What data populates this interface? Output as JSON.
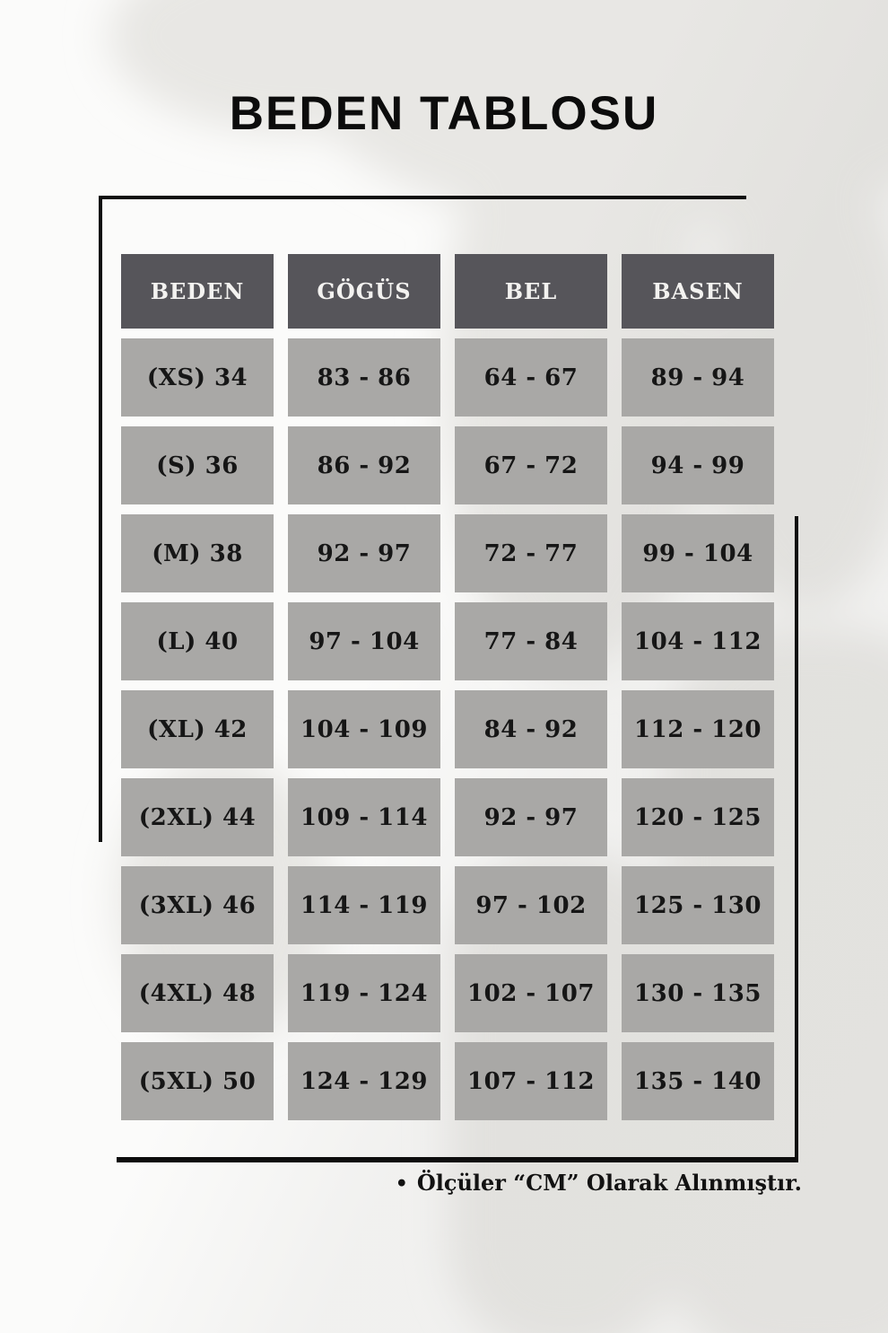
{
  "title": "BEDEN TABLOSU",
  "footnote": {
    "bullet": "•",
    "text": "Ölçüler “CM” Olarak Alınmıştır."
  },
  "chart_data": {
    "type": "table",
    "title": "BEDEN TABLOSU",
    "columns": [
      "BEDEN",
      "GÖGÜS",
      "BEL",
      "BASEN"
    ],
    "rows": [
      [
        "(XS) 34",
        "83 - 86",
        "64 - 67",
        "89 - 94"
      ],
      [
        "(S) 36",
        "86 - 92",
        "67 - 72",
        "94 - 99"
      ],
      [
        "(M) 38",
        "92 - 97",
        "72 - 77",
        "99 - 104"
      ],
      [
        "(L) 40",
        "97 - 104",
        "77 - 84",
        "104 - 112"
      ],
      [
        "(XL) 42",
        "104 - 109",
        "84 - 92",
        "112 - 120"
      ],
      [
        "(2XL) 44",
        "109 - 114",
        "92 - 97",
        "120 - 125"
      ],
      [
        "(3XL) 46",
        "114 - 119",
        "97 - 102",
        "125 - 130"
      ],
      [
        "(4XL) 48",
        "119 - 124",
        "102 - 107",
        "130 - 135"
      ],
      [
        "(5XL) 50",
        "124 - 129",
        "107 - 112",
        "135 - 140"
      ]
    ],
    "note": "Ölçüler “CM” Olarak Alınmıştır.",
    "layout": {
      "grid": "off",
      "header_position": "top-row"
    }
  },
  "colors": {
    "header_bg": "#56555a",
    "header_text": "#f3f2f0",
    "cell_bg": "#a9a8a6",
    "cell_text": "#161616",
    "frame_line": "#0d0d0d",
    "page_bg": "#fbfbfa",
    "silhouette": "#e8e7e4"
  }
}
